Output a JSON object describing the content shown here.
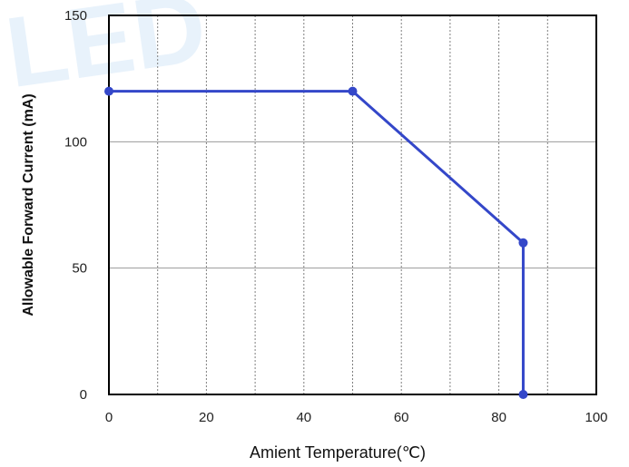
{
  "chart_data": {
    "type": "line",
    "title": "",
    "xlabel": "Amient Temperature(℃)",
    "ylabel": "Allowable Forward Current (mA)",
    "xlim": [
      0,
      100
    ],
    "ylim": [
      0,
      150
    ],
    "x_ticks": [
      "0",
      "20",
      "40",
      "60",
      "80",
      "100"
    ],
    "y_ticks": [
      "0",
      "50",
      "100",
      "150"
    ],
    "x_grid_values": [
      10,
      20,
      30,
      40,
      50,
      60,
      70,
      80,
      90
    ],
    "y_grid_values": [
      50,
      100
    ],
    "grid": true,
    "series": [
      {
        "points": [
          {
            "x": 0,
            "y": 120
          },
          {
            "x": 50,
            "y": 120
          },
          {
            "x": 85,
            "y": 60
          },
          {
            "x": 85,
            "y": 0
          }
        ],
        "color": "#3447c9",
        "marker": "circle"
      }
    ]
  },
  "watermark_color": "#e8f2fb"
}
